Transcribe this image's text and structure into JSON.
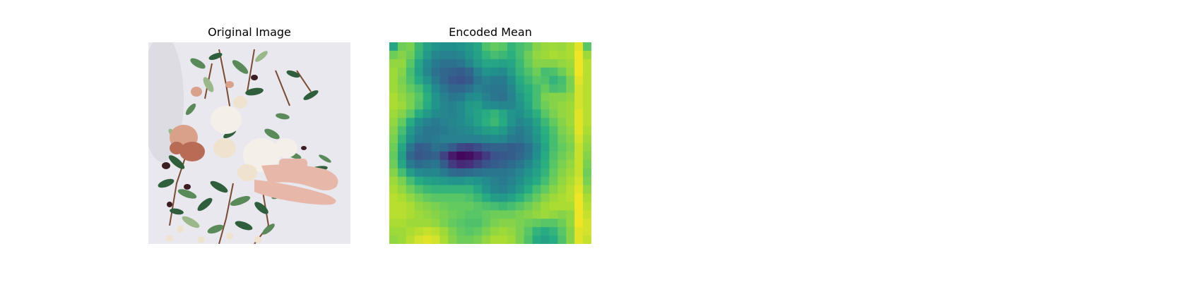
{
  "chart_data": [
    {
      "type": "image",
      "title": "Original Image",
      "image_description_colors": {
        "background": "#e9e8ee",
        "leaf_dark": "#2f5e3c",
        "leaf_mid": "#5b8a5a",
        "leaf_light": "#9bb88a",
        "petal_white": "#f4efe9",
        "petal_cream": "#efe3cf",
        "petal_pink": "#d9a08a",
        "petal_rust": "#b86b55",
        "skin": "#e7b8aa",
        "stem_brown": "#7a4a32",
        "dark_accent": "#3a1e22"
      }
    },
    {
      "type": "heatmap",
      "title": "Encoded Mean",
      "colormap": "viridis",
      "grid": false,
      "rows": 24,
      "cols": 24,
      "values": [
        [
          0.6,
          0.78,
          0.8,
          0.68,
          0.58,
          0.52,
          0.5,
          0.5,
          0.52,
          0.55,
          0.6,
          0.72,
          0.76,
          0.74,
          0.66,
          0.7,
          0.74,
          0.82,
          0.85,
          0.86,
          0.85,
          0.88,
          0.96,
          0.74
        ],
        [
          0.78,
          0.82,
          0.78,
          0.66,
          0.54,
          0.46,
          0.44,
          0.44,
          0.46,
          0.52,
          0.58,
          0.66,
          0.7,
          0.68,
          0.64,
          0.7,
          0.78,
          0.84,
          0.86,
          0.88,
          0.87,
          0.88,
          0.98,
          0.86
        ],
        [
          0.84,
          0.84,
          0.74,
          0.6,
          0.48,
          0.42,
          0.38,
          0.38,
          0.4,
          0.46,
          0.54,
          0.6,
          0.6,
          0.58,
          0.6,
          0.68,
          0.76,
          0.82,
          0.82,
          0.82,
          0.84,
          0.86,
          0.98,
          0.9
        ],
        [
          0.86,
          0.82,
          0.7,
          0.58,
          0.46,
          0.38,
          0.34,
          0.32,
          0.3,
          0.34,
          0.44,
          0.52,
          0.5,
          0.48,
          0.56,
          0.66,
          0.72,
          0.78,
          0.7,
          0.72,
          0.78,
          0.84,
          0.98,
          0.9
        ],
        [
          0.86,
          0.8,
          0.72,
          0.62,
          0.52,
          0.42,
          0.34,
          0.28,
          0.26,
          0.3,
          0.4,
          0.44,
          0.42,
          0.42,
          0.5,
          0.62,
          0.68,
          0.74,
          0.72,
          0.66,
          0.7,
          0.8,
          0.96,
          0.9
        ],
        [
          0.86,
          0.82,
          0.76,
          0.7,
          0.6,
          0.48,
          0.4,
          0.34,
          0.34,
          0.38,
          0.44,
          0.42,
          0.4,
          0.4,
          0.46,
          0.58,
          0.64,
          0.7,
          0.76,
          0.7,
          0.72,
          0.8,
          0.94,
          0.9
        ],
        [
          0.88,
          0.84,
          0.8,
          0.74,
          0.64,
          0.52,
          0.44,
          0.4,
          0.42,
          0.48,
          0.5,
          0.44,
          0.4,
          0.38,
          0.44,
          0.54,
          0.62,
          0.7,
          0.8,
          0.82,
          0.82,
          0.84,
          0.94,
          0.9
        ],
        [
          0.88,
          0.86,
          0.8,
          0.72,
          0.62,
          0.52,
          0.46,
          0.44,
          0.48,
          0.54,
          0.56,
          0.5,
          0.48,
          0.46,
          0.46,
          0.52,
          0.6,
          0.7,
          0.78,
          0.82,
          0.84,
          0.86,
          0.94,
          0.9
        ],
        [
          0.86,
          0.82,
          0.74,
          0.62,
          0.54,
          0.48,
          0.46,
          0.44,
          0.48,
          0.54,
          0.58,
          0.62,
          0.66,
          0.6,
          0.52,
          0.5,
          0.56,
          0.64,
          0.74,
          0.8,
          0.84,
          0.86,
          0.96,
          0.9
        ],
        [
          0.84,
          0.76,
          0.62,
          0.5,
          0.44,
          0.42,
          0.44,
          0.46,
          0.48,
          0.52,
          0.58,
          0.64,
          0.68,
          0.62,
          0.52,
          0.46,
          0.5,
          0.58,
          0.68,
          0.76,
          0.82,
          0.86,
          0.96,
          0.9
        ],
        [
          0.82,
          0.7,
          0.54,
          0.44,
          0.4,
          0.4,
          0.42,
          0.44,
          0.46,
          0.48,
          0.52,
          0.56,
          0.58,
          0.54,
          0.46,
          0.42,
          0.46,
          0.54,
          0.64,
          0.72,
          0.8,
          0.84,
          0.96,
          0.88
        ],
        [
          0.8,
          0.66,
          0.5,
          0.42,
          0.4,
          0.42,
          0.44,
          0.44,
          0.44,
          0.44,
          0.44,
          0.46,
          0.48,
          0.46,
          0.42,
          0.4,
          0.44,
          0.52,
          0.62,
          0.7,
          0.78,
          0.82,
          0.94,
          0.86
        ],
        [
          0.78,
          0.6,
          0.4,
          0.3,
          0.32,
          0.38,
          0.36,
          0.3,
          0.22,
          0.2,
          0.24,
          0.3,
          0.32,
          0.32,
          0.3,
          0.32,
          0.38,
          0.48,
          0.6,
          0.7,
          0.76,
          0.8,
          0.92,
          0.84
        ],
        [
          0.76,
          0.56,
          0.34,
          0.28,
          0.3,
          0.32,
          0.2,
          0.08,
          0.02,
          0.04,
          0.1,
          0.18,
          0.26,
          0.28,
          0.3,
          0.34,
          0.4,
          0.5,
          0.62,
          0.72,
          0.78,
          0.82,
          0.92,
          0.82
        ],
        [
          0.78,
          0.6,
          0.42,
          0.36,
          0.38,
          0.4,
          0.3,
          0.18,
          0.12,
          0.14,
          0.2,
          0.26,
          0.3,
          0.32,
          0.36,
          0.4,
          0.46,
          0.54,
          0.64,
          0.74,
          0.8,
          0.84,
          0.92,
          0.8
        ],
        [
          0.82,
          0.7,
          0.56,
          0.48,
          0.46,
          0.46,
          0.42,
          0.36,
          0.34,
          0.36,
          0.38,
          0.4,
          0.4,
          0.4,
          0.42,
          0.46,
          0.52,
          0.58,
          0.66,
          0.76,
          0.82,
          0.86,
          0.92,
          0.78
        ],
        [
          0.86,
          0.8,
          0.7,
          0.62,
          0.58,
          0.56,
          0.54,
          0.52,
          0.52,
          0.54,
          0.52,
          0.48,
          0.44,
          0.42,
          0.44,
          0.5,
          0.56,
          0.62,
          0.7,
          0.78,
          0.84,
          0.88,
          0.94,
          0.8
        ],
        [
          0.88,
          0.84,
          0.78,
          0.72,
          0.68,
          0.66,
          0.66,
          0.66,
          0.66,
          0.66,
          0.6,
          0.52,
          0.46,
          0.44,
          0.48,
          0.54,
          0.62,
          0.7,
          0.76,
          0.82,
          0.86,
          0.9,
          0.96,
          0.84
        ],
        [
          0.9,
          0.88,
          0.84,
          0.8,
          0.76,
          0.74,
          0.74,
          0.74,
          0.74,
          0.72,
          0.68,
          0.62,
          0.56,
          0.54,
          0.58,
          0.64,
          0.7,
          0.76,
          0.82,
          0.86,
          0.88,
          0.9,
          0.98,
          0.88
        ],
        [
          0.9,
          0.9,
          0.88,
          0.84,
          0.82,
          0.8,
          0.78,
          0.76,
          0.76,
          0.76,
          0.74,
          0.72,
          0.7,
          0.68,
          0.7,
          0.74,
          0.78,
          0.82,
          0.86,
          0.88,
          0.88,
          0.88,
          0.98,
          0.9
        ],
        [
          0.9,
          0.9,
          0.88,
          0.86,
          0.84,
          0.82,
          0.8,
          0.78,
          0.76,
          0.74,
          0.74,
          0.76,
          0.78,
          0.78,
          0.78,
          0.8,
          0.82,
          0.84,
          0.86,
          0.84,
          0.82,
          0.84,
          0.98,
          0.92
        ],
        [
          0.88,
          0.88,
          0.86,
          0.86,
          0.86,
          0.84,
          0.8,
          0.76,
          0.74,
          0.72,
          0.72,
          0.76,
          0.8,
          0.82,
          0.82,
          0.8,
          0.78,
          0.76,
          0.74,
          0.74,
          0.78,
          0.84,
          0.98,
          0.94
        ],
        [
          0.86,
          0.86,
          0.88,
          0.9,
          0.92,
          0.9,
          0.86,
          0.8,
          0.76,
          0.74,
          0.76,
          0.8,
          0.84,
          0.86,
          0.84,
          0.8,
          0.74,
          0.66,
          0.62,
          0.66,
          0.74,
          0.82,
          0.96,
          0.94
        ],
        [
          0.84,
          0.86,
          0.9,
          0.94,
          0.96,
          0.94,
          0.88,
          0.82,
          0.78,
          0.78,
          0.8,
          0.84,
          0.88,
          0.88,
          0.86,
          0.8,
          0.72,
          0.62,
          0.58,
          0.62,
          0.72,
          0.82,
          0.96,
          0.92
        ]
      ]
    }
  ]
}
